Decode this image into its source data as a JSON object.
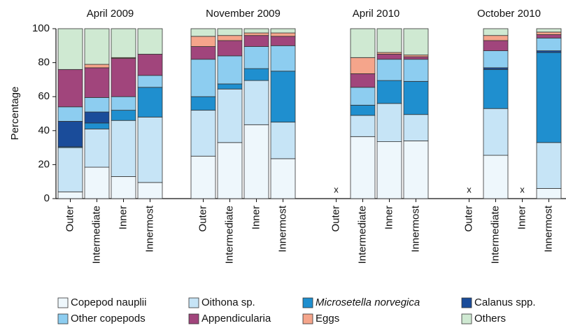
{
  "chart_data": {
    "type": "stacked-bar",
    "groups": [
      "April 2009",
      "November 2009",
      "April 2010",
      "October 2010"
    ],
    "categories": [
      "Outer",
      "Intermediate",
      "Inner",
      "Innermost",
      "Outer",
      "Intermediate",
      "Inner",
      "Innermost",
      "Outer",
      "Intermediate",
      "Inner",
      "Innermost",
      "Outer",
      "Intermediate",
      "Inner",
      "Innermost"
    ],
    "ylabel": "Percentage",
    "missing_marker": "x",
    "ylim": [
      0,
      100
    ],
    "yticks": [
      0,
      20,
      40,
      60,
      80,
      100
    ],
    "series": [
      {
        "name": "Copepod nauplii",
        "color": "#eef7fc",
        "values": [
          4,
          18.5,
          13,
          9.5,
          25,
          33,
          43.5,
          23.5,
          null,
          36.5,
          33.5,
          34,
          null,
          25.5,
          null,
          6
        ]
      },
      {
        "name": "Oithona sp.",
        "color": "#c6e4f6",
        "values": [
          26,
          22.5,
          33,
          38.5,
          27,
          31.5,
          26,
          21.5,
          null,
          12.5,
          22.5,
          15.5,
          null,
          27.5,
          null,
          27
        ]
      },
      {
        "name": "Microsetella norvegica",
        "color": "#1f8fcf",
        "values": [
          0.5,
          3.5,
          6,
          17.5,
          8,
          3,
          7,
          30,
          null,
          6,
          13.5,
          19.5,
          null,
          23,
          null,
          53
        ]
      },
      {
        "name": "Calanus spp.",
        "color": "#1a4c9a",
        "values": [
          15,
          6.5,
          0,
          0,
          0,
          0,
          0,
          0,
          null,
          0,
          0,
          0,
          null,
          1,
          null,
          1
        ]
      },
      {
        "name": "Other copepods",
        "color": "#8dcdf0",
        "values": [
          8.5,
          8.5,
          8,
          7,
          22,
          16.5,
          13,
          15,
          null,
          10.5,
          12.5,
          13,
          null,
          10,
          null,
          7.5
        ]
      },
      {
        "name": "Appendicularia",
        "color": "#a1457c",
        "values": [
          22,
          17.5,
          22.5,
          12.5,
          7.5,
          9,
          6.5,
          5.5,
          null,
          8,
          3,
          1.5,
          null,
          6,
          null,
          2
        ]
      },
      {
        "name": "Eggs",
        "color": "#f5a58b",
        "values": [
          0,
          2,
          0.5,
          0,
          6,
          3,
          1.5,
          2,
          null,
          9.5,
          1,
          1,
          null,
          3,
          null,
          1.5
        ]
      },
      {
        "name": "Others",
        "color": "#cfe9d2",
        "values": [
          24,
          21,
          17,
          15,
          4.5,
          4,
          2.5,
          2.5,
          null,
          17,
          14,
          15.5,
          null,
          4,
          null,
          2
        ]
      }
    ]
  }
}
